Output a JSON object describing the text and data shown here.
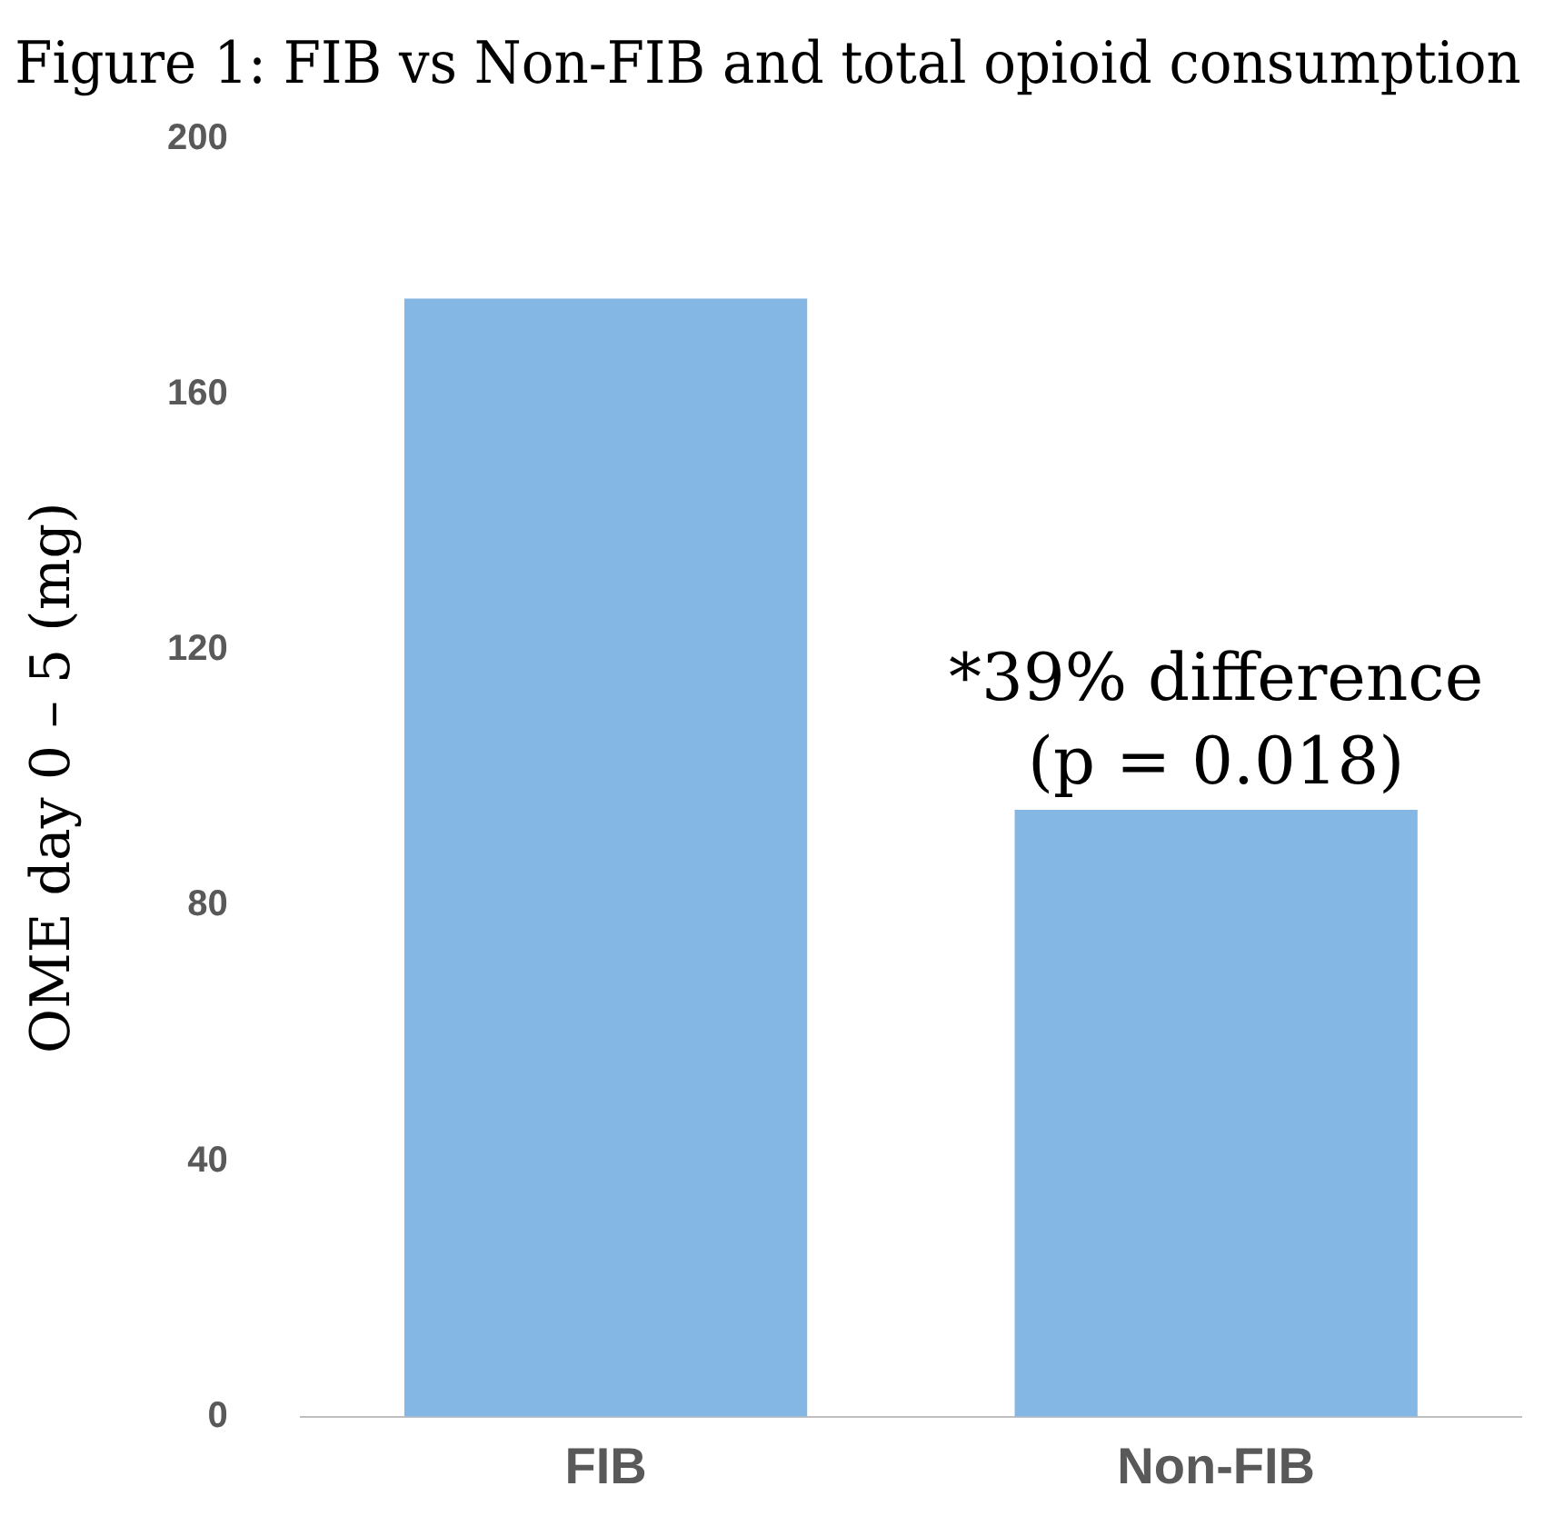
{
  "chart_data": {
    "type": "bar",
    "title": "Figure 1: FIB vs Non-FIB and total opioid consumption",
    "ylabel": "OME day 0 – 5 (mg)",
    "categories": [
      "FIB",
      "Non-FIB"
    ],
    "values": [
      175,
      95
    ],
    "color": "#85b7e5",
    "ylim": [
      0,
      200
    ],
    "yticks": [
      0,
      40,
      80,
      120,
      160,
      200
    ],
    "grid": false,
    "annotations": [
      {
        "text": "*39% difference (p = 0.018)",
        "x": "Non-FIB",
        "y": 95
      }
    ]
  }
}
